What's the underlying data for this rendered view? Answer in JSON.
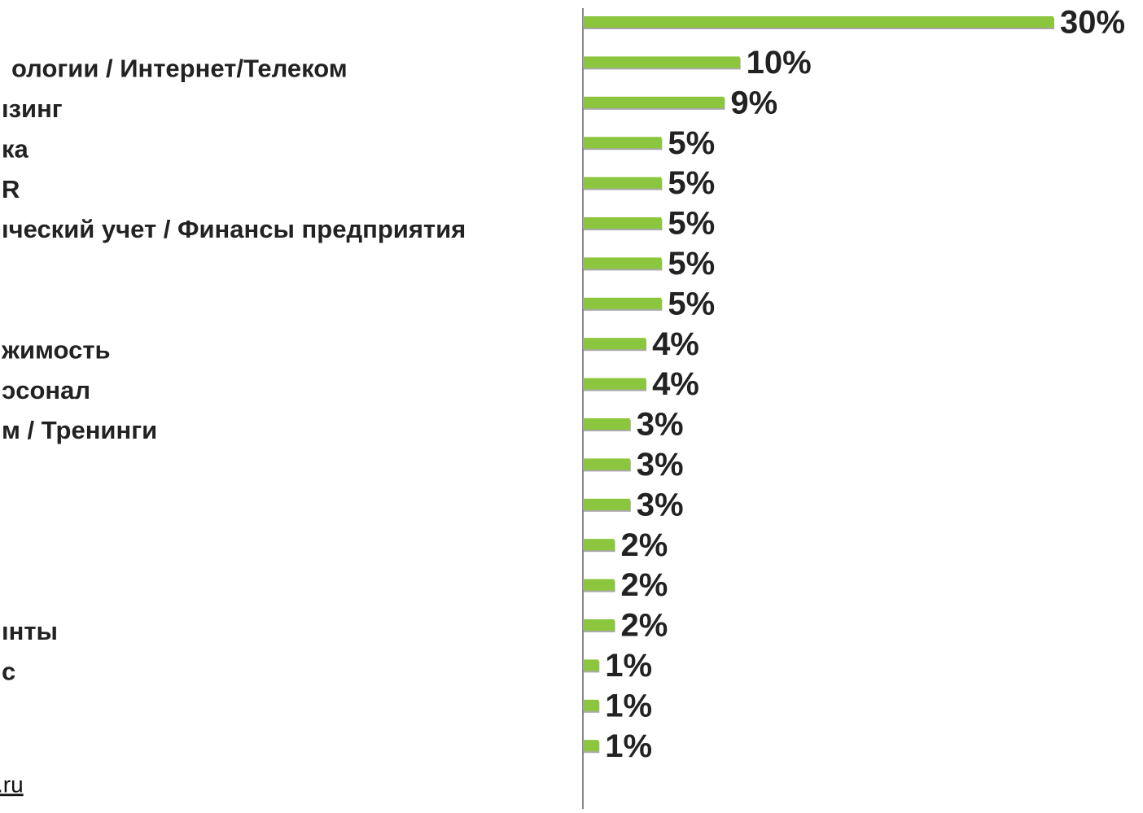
{
  "chart_data": {
    "type": "barh",
    "categories": [
      null,
      "ологии / Интернет/Телеком",
      "ıзинг",
      "ка",
      "R",
      "ıческий учет / Финансы предприятия",
      null,
      null,
      "жимость",
      "ɔсонал",
      "м / Тренинги",
      null,
      null,
      null,
      null,
      "ıнты",
      "c",
      null,
      null
    ],
    "values": [
      30,
      10,
      9,
      5,
      5,
      5,
      5,
      5,
      4,
      4,
      3,
      3,
      3,
      2,
      2,
      2,
      1,
      1,
      1
    ],
    "value_labels": [
      "30%",
      "10%",
      "9%",
      "5%",
      "5%",
      "5%",
      "5%",
      "5%",
      "4%",
      "4%",
      "3%",
      "3%",
      "3%",
      "2%",
      "2%",
      "2%",
      "1%",
      "1%",
      "1%"
    ],
    "color": "#8cc63e",
    "xlim": [
      0,
      30
    ],
    "source": ".ru"
  }
}
